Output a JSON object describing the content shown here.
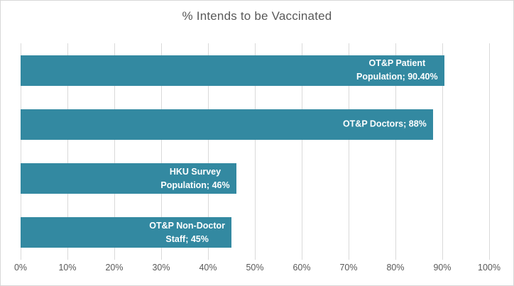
{
  "chart_data": {
    "type": "bar",
    "orientation": "horizontal",
    "title": "% Intends to be Vaccinated",
    "categories": [
      "OT&P Patient Population",
      "OT&P Doctors",
      "HKU Survey Population",
      "OT&P Non-Doctor Staff"
    ],
    "values": [
      90.4,
      88,
      46,
      45
    ],
    "data_labels": [
      [
        "OT&P Patient",
        "Population; 90.40%"
      ],
      [
        "OT&P Doctors; 88%"
      ],
      [
        "HKU Survey",
        "Population; 46%"
      ],
      [
        "OT&P Non-Doctor",
        "Staff; 45%"
      ]
    ],
    "xlabel": "",
    "ylabel": "",
    "xlim": [
      0,
      100
    ],
    "x_ticks": [
      0,
      10,
      20,
      30,
      40,
      50,
      60,
      70,
      80,
      90,
      100
    ],
    "x_tick_labels": [
      "0%",
      "10%",
      "20%",
      "30%",
      "40%",
      "50%",
      "60%",
      "70%",
      "80%",
      "90%",
      "100%"
    ],
    "grid": "vertical",
    "legend": "none",
    "colors": {
      "bar": "#3389A1",
      "bar_label_text": "#FFFFFF",
      "title_text": "#595959",
      "axis_text": "#595959",
      "gridline": "#D9D9D9",
      "chart_border": "#D7D7D7",
      "background": "#FFFFFF"
    }
  }
}
